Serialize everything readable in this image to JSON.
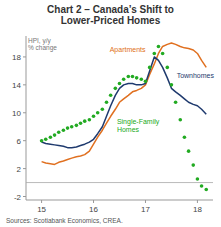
{
  "chart_data": {
    "type": "line",
    "title": "Chart 2 – Canada’s Shift to\nLower-Priced Homes",
    "y_label": "HPI, y/y\n% change",
    "source": "Sources: Scotiabank Economics, CREA.",
    "x": [
      15.0,
      15.08,
      15.17,
      15.25,
      15.33,
      15.42,
      15.5,
      15.58,
      15.67,
      15.75,
      15.83,
      15.92,
      16.0,
      16.08,
      16.17,
      16.25,
      16.33,
      16.42,
      16.5,
      16.58,
      16.67,
      16.75,
      16.83,
      16.92,
      17.0,
      17.08,
      17.17,
      17.25,
      17.33,
      17.42,
      17.5,
      17.58,
      17.67,
      17.75,
      17.83,
      17.92,
      18.0,
      18.08,
      18.17
    ],
    "series": [
      {
        "name": "Apartments",
        "color": "#E07020",
        "line_style": "solid",
        "values": [
          3.0,
          2.8,
          2.7,
          2.6,
          2.9,
          3.1,
          3.3,
          3.5,
          3.7,
          3.8,
          4.0,
          4.5,
          5.5,
          6.5,
          7.5,
          8.5,
          9.5,
          10.5,
          11.5,
          12.0,
          12.5,
          13.0,
          13.2,
          13.5,
          14.0,
          15.5,
          17.0,
          18.5,
          19.5,
          19.8,
          20.0,
          19.8,
          19.5,
          19.3,
          19.2,
          19.0,
          18.5,
          17.5,
          16.5
        ]
      },
      {
        "name": "Townhomes",
        "color": "#1F3A6E",
        "line_style": "solid",
        "values": [
          5.8,
          5.6,
          5.5,
          5.4,
          5.3,
          5.2,
          5.0,
          5.0,
          5.1,
          5.3,
          5.5,
          5.8,
          6.2,
          7.0,
          8.0,
          9.5,
          11.0,
          12.5,
          13.5,
          14.0,
          14.2,
          14.2,
          14.0,
          14.0,
          14.2,
          16.0,
          18.0,
          17.5,
          16.5,
          15.0,
          13.5,
          13.0,
          12.5,
          12.0,
          11.5,
          11.2,
          11.0,
          10.5,
          9.8
        ]
      },
      {
        "name": "Single-Family\nHomes",
        "color": "#22AA22",
        "line_style": "none",
        "marker": "circle",
        "values": [
          6.0,
          6.2,
          6.5,
          6.8,
          7.2,
          7.5,
          7.8,
          8.0,
          8.2,
          8.5,
          8.8,
          9.0,
          9.5,
          10.0,
          10.5,
          11.5,
          12.5,
          13.5,
          14.2,
          14.8,
          15.2,
          15.2,
          15.0,
          14.8,
          14.5,
          16.5,
          18.5,
          19.5,
          18.5,
          16.5,
          14.0,
          11.5,
          9.0,
          6.5,
          4.5,
          2.5,
          0.5,
          -0.5,
          -1.0
        ]
      }
    ],
    "reference_line": 0,
    "xlim": [
      14.7,
      18.3
    ],
    "ylim": [
      -2.5,
      21
    ],
    "xticks": [
      15,
      16,
      17,
      18
    ],
    "yticks": [
      -2,
      2,
      6,
      10,
      14,
      18
    ],
    "grid": false
  }
}
